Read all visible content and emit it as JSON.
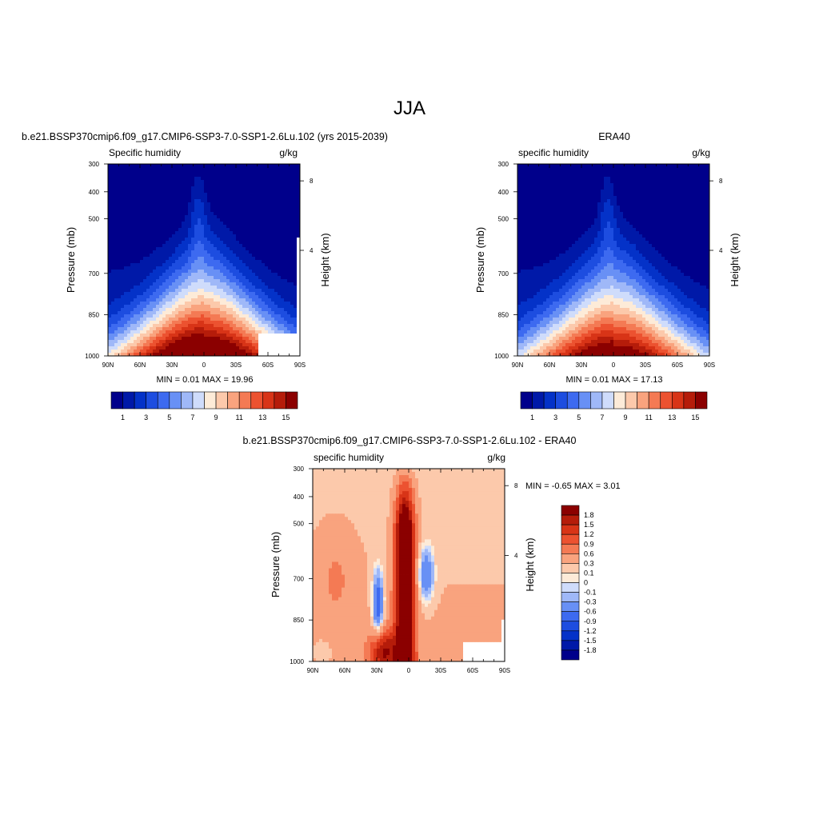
{
  "page": {
    "title": "JJA"
  },
  "panels": [
    {
      "title": "b.e21.BSSP370cmip6.f09_g17.CMIP6-SSP3-7.0-SSP1-2.6Lu.102 (yrs 2015-2039)",
      "left_label": "Specific humidity",
      "right_label": "g/kg",
      "ylabel": "Pressure (mb)",
      "y2label": "Height (km)",
      "minmax": "MIN =   0.01  MAX =  19.96"
    },
    {
      "title": "ERA40",
      "left_label": "specific humidity",
      "right_label": "g/kg",
      "ylabel": "Pressure (mb)",
      "y2label": "Height (km)",
      "minmax": "MIN =   0.01  MAX =  17.13"
    },
    {
      "title": "b.e21.BSSP370cmip6.f09_g17.CMIP6-SSP3-7.0-SSP1-2.6Lu.102 - ERA40",
      "left_label": "specific humidity",
      "right_label": "g/kg",
      "ylabel": "Pressure (mb)",
      "y2label": "Height (km)",
      "minmax": "MIN =  -0.65  MAX =   3.01"
    }
  ],
  "chart_data": [
    {
      "type": "heatmap",
      "x_ticks": [
        "90N",
        "60N",
        "30N",
        "0",
        "30S",
        "60S",
        "90S"
      ],
      "y_ticks": [
        "300",
        "400",
        "500",
        "700",
        "850",
        "1000"
      ],
      "y2_ticks": [
        "8",
        "4"
      ],
      "colorbar_labels": [
        "1",
        "3",
        "5",
        "7",
        "9",
        "11",
        "13",
        "15"
      ],
      "colorbar_colors": [
        "#00008b",
        "#0019a8",
        "#0432c8",
        "#1d4de0",
        "#3d6af0",
        "#6890f5",
        "#9fb8f8",
        "#cfdcfb",
        "#fdebd8",
        "#fcc9ab",
        "#f9a37e",
        "#f47a54",
        "#ec5230",
        "#d83417",
        "#b51c0a",
        "#8b0000"
      ],
      "levels": [
        1,
        2,
        3,
        4,
        5,
        6,
        7,
        8,
        9,
        10,
        11,
        12,
        13,
        14,
        15
      ],
      "max": 19.96,
      "min": 0.01
    },
    {
      "type": "heatmap",
      "x_ticks": [
        "90N",
        "60N",
        "30N",
        "0",
        "30S",
        "60S",
        "90S"
      ],
      "y_ticks": [
        "300",
        "400",
        "500",
        "700",
        "850",
        "1000"
      ],
      "y2_ticks": [
        "8",
        "4"
      ],
      "colorbar_labels": [
        "1",
        "3",
        "5",
        "7",
        "9",
        "11",
        "13",
        "15"
      ],
      "colorbar_colors": [
        "#00008b",
        "#0019a8",
        "#0432c8",
        "#1d4de0",
        "#3d6af0",
        "#6890f5",
        "#9fb8f8",
        "#cfdcfb",
        "#fdebd8",
        "#fcc9ab",
        "#f9a37e",
        "#f47a54",
        "#ec5230",
        "#d83417",
        "#b51c0a",
        "#8b0000"
      ],
      "levels": [
        1,
        2,
        3,
        4,
        5,
        6,
        7,
        8,
        9,
        10,
        11,
        12,
        13,
        14,
        15
      ],
      "max": 17.13,
      "min": 0.01
    },
    {
      "type": "heatmap",
      "x_ticks": [
        "90N",
        "60N",
        "30N",
        "0",
        "30S",
        "60S",
        "90S"
      ],
      "y_ticks": [
        "300",
        "400",
        "500",
        "700",
        "850",
        "1000"
      ],
      "y2_ticks": [
        "8",
        "4"
      ],
      "colorbar_labels": [
        "1.8",
        "1.5",
        "1.2",
        "0.9",
        "0.6",
        "0.3",
        "0.1",
        "0",
        "-0.1",
        "-0.3",
        "-0.6",
        "-0.9",
        "-1.2",
        "-1.5",
        "-1.8"
      ],
      "colorbar_colors": [
        "#8b0000",
        "#b51c0a",
        "#d83417",
        "#ec5230",
        "#f47a54",
        "#f9a37e",
        "#fcc9ab",
        "#fdebd8",
        "#cfdcfb",
        "#9fb8f8",
        "#6890f5",
        "#3d6af0",
        "#1d4de0",
        "#0432c8",
        "#0019a8",
        "#00008b"
      ],
      "levels": [
        1.8,
        1.5,
        1.2,
        0.9,
        0.6,
        0.3,
        0.1,
        0,
        -0.1,
        -0.3,
        -0.6,
        -0.9,
        -1.2,
        -1.5,
        -1.8
      ],
      "max": 3.01,
      "min": -0.65
    }
  ]
}
